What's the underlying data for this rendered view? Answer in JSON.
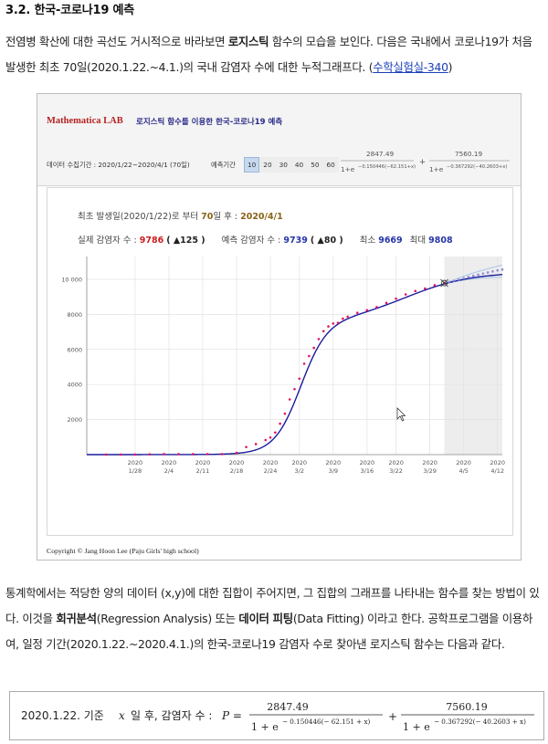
{
  "doc": {
    "heading": "3.2. 한국-코로나19 예측",
    "intro_part1": "전염병 확산에 대한 곡선도 거시적으로 바라보면 ",
    "intro_bold": "로지스틱",
    "intro_part2": " 함수의 모습을 보인다. 다음은 국내에서 코로나19가 처음 발생한 최초 70일(2020.1.22.~4.1.)의 국내 감염자 수에 대한 누적그래프다. (",
    "intro_link": "수학실험실-340",
    "intro_end": ")",
    "body_part1": "통계학에서는 적당한 양의 데이터 (x,y)에 대한 집합이 주어지면, 그 집합의 그래프를 나타내는 함수를 찾는 방법이 있다. 이것을 ",
    "body_bold1": "회귀분석",
    "body_part2": "(Regression Analysis) 또는 ",
    "body_bold2": "데이터 피팅",
    "body_part3": "(Data Fitting) 이라고 한다. 공학프로그램을 이용하여, 일정 기간(2020.1.22.~2020.4.1.)의 한국-코로나19 감염자 수로 찾아낸 로지스틱 함수는 다음과 같다.",
    "formula_prefix": "2020.1.22. 기준",
    "formula_var": "x",
    "formula_mid": "일 후, 감염자 수 :",
    "formula_P": "P =",
    "formula_num1": "2847.49",
    "formula_num2": "7560.19",
    "formula_den_base": "1 + e",
    "formula_exp1": "− 0.150446(− 62.151 + x)",
    "formula_exp2": "− 0.367292(− 40.2603 + x)",
    "plus": "+"
  },
  "app": {
    "brand": "Mathematica LAB",
    "title": "로지스틱 함수를 이용한 한국-코로나19 예측",
    "period_label": "데이터 수집기간 : 2020/1/22~2020/4/1 (70일)",
    "predict_label": "예측기간",
    "predict_options": [
      "10",
      "20",
      "30",
      "40",
      "50",
      "60"
    ],
    "predict_selected": "10",
    "fx_num1": "2847.49",
    "fx_num2": "7560.19",
    "fx_den1": "1+e",
    "fx_exp1": "−0.150446(−62.151+x)",
    "fx_den2": "1+e",
    "fx_exp2": "−0.367292(−40.2603+x)",
    "fx_plus": "+",
    "info_line1_pre": "최초 발생일(2020/1/22)로 부터 ",
    "info_days": "70",
    "info_line1_mid": "일 후 : ",
    "info_date": "2020/4/1",
    "actual_label": "실제 감염자 수 : ",
    "actual_value": "9786",
    "actual_delta": "( ▲125 )",
    "pred_label": "예측 감염자 수 : ",
    "pred_value": "9739",
    "pred_delta": "( ▲80 )",
    "min_label": "최소 ",
    "min_value": "9669",
    "max_label": "최대 ",
    "max_value": "9808",
    "copyright": "Copyright © Jang Hoon Lee (Paju Girls' high school)"
  },
  "chart_data": {
    "type": "line",
    "ylim": [
      0,
      11300
    ],
    "xlim": [
      -4,
      82
    ],
    "y_ticks": [
      2000,
      4000,
      6000,
      8000,
      10000
    ],
    "y_tick_labels": [
      "2000",
      "4000",
      "6000",
      "8000",
      "10 000"
    ],
    "x_ticks": [
      6,
      13,
      20,
      27,
      34,
      40,
      47,
      54,
      60,
      67,
      74,
      81
    ],
    "x_tick_year": "2020",
    "x_tick_labels": [
      "1/28",
      "2/4",
      "2/11",
      "2/18",
      "2/24",
      "3/2",
      "3/9",
      "3/16",
      "3/22",
      "3/29",
      "4/5",
      "4/12"
    ],
    "forecast_start": 70,
    "forecast_end": 82,
    "current_point": {
      "x": 70,
      "y": 9786
    },
    "grid": true,
    "series": [
      {
        "role": "observed",
        "color": "#e0115f",
        "x": [
          0,
          3,
          6,
          9,
          12,
          15,
          18,
          21,
          24,
          27,
          29,
          31,
          33,
          34,
          35,
          36,
          37,
          38,
          39,
          40,
          41,
          42,
          43,
          44,
          45,
          46,
          47,
          48,
          49,
          50,
          52,
          54,
          56,
          58,
          60,
          62,
          64,
          66,
          68,
          70
        ],
        "y": [
          1,
          4,
          4,
          16,
          28,
          28,
          29,
          30,
          31,
          104,
          433,
          602,
          833,
          977,
          1261,
          1766,
          2337,
          3150,
          3736,
          4335,
          5186,
          5621,
          6088,
          6593,
          7041,
          7313,
          7478,
          7513,
          7755,
          7869,
          8086,
          8236,
          8413,
          8652,
          8897,
          9137,
          9332,
          9478,
          9661,
          9786
        ]
      },
      {
        "role": "predicted",
        "color": "#8b8bd6",
        "x": [
          71,
          72,
          73,
          74,
          75,
          76,
          77,
          78,
          79,
          80,
          81,
          82
        ],
        "y": [
          9850,
          9920,
          9990,
          10060,
          10130,
          10200,
          10260,
          10330,
          10390,
          10450,
          10510,
          10560
        ]
      }
    ]
  },
  "colors": {
    "fit_line": "#1c1c9c",
    "observed": "#e0115f",
    "band": "#a9c6ea",
    "forecast_bg": "#ededed",
    "grid": "#e2e2e2"
  }
}
